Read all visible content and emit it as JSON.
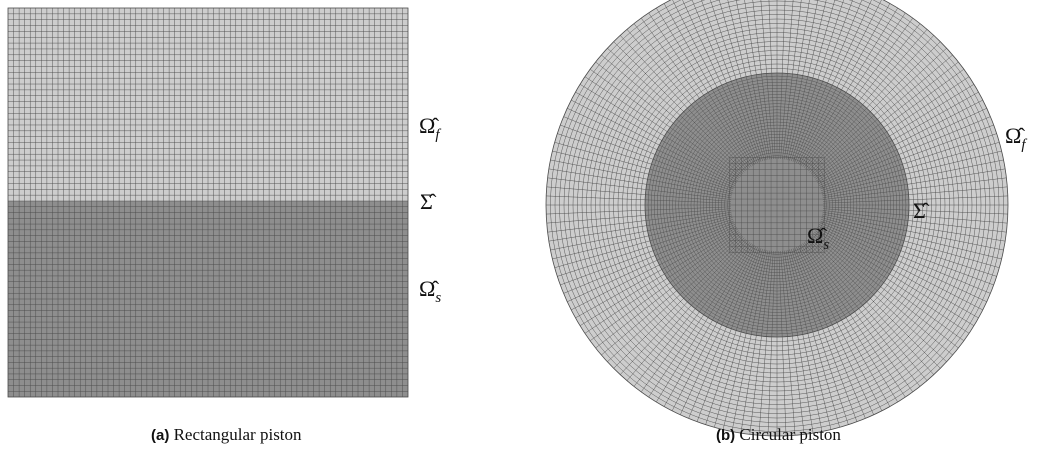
{
  "panels": [
    {
      "caption_tag": "(a)",
      "caption_text": "Rectangular piston",
      "labels": {
        "fluid": "Ω̂",
        "fluid_sub": "f",
        "interface": "Σ̂",
        "solid": "Ω̂",
        "solid_sub": "s"
      },
      "mesh": {
        "columns": 72,
        "fluid_rows": 33,
        "solid_rows": 34
      },
      "colors": {
        "fluid": "#cdcdcd",
        "solid": "#8e8e8e",
        "grid": "#4a4a4a"
      }
    },
    {
      "caption_tag": "(b)",
      "caption_text": "Circular piston",
      "labels": {
        "fluid": "Ω̂",
        "fluid_sub": "f",
        "interface": "Σ̂",
        "solid": "Ω̂",
        "solid_sub": "s"
      },
      "mesh": {
        "outer_radial_rings": 22,
        "inner_radial_rings": 28,
        "angular_divisions": 160,
        "inner_ratio": 0.57
      },
      "colors": {
        "fluid": "#cdcdcd",
        "solid": "#8e8e8e",
        "grid": "#4a4a4a"
      }
    }
  ]
}
